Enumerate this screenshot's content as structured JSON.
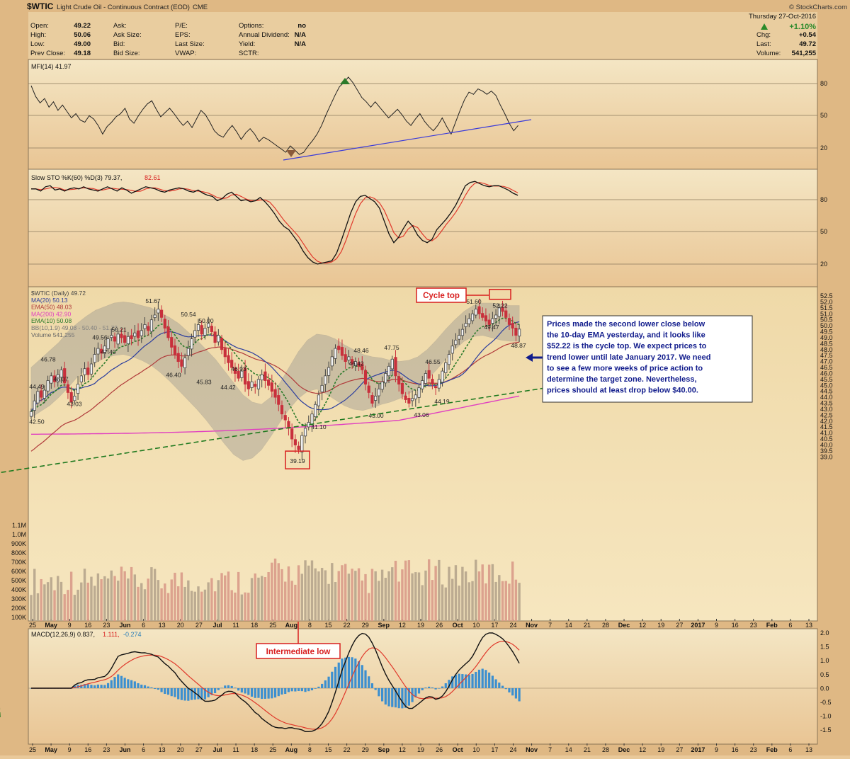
{
  "header": {
    "symbol": "$WTIC",
    "name": "Light Crude Oil - Continuous Contract (EOD)",
    "exchange": "CME",
    "watermark": "© StockCharts.com",
    "date": "Thursday  27-Oct-2016",
    "change_pct": "+1.10%",
    "stats": [
      {
        "label": "Open:",
        "value": "49.22"
      },
      {
        "label": "High:",
        "value": "50.06"
      },
      {
        "label": "Low:",
        "value": "49.00"
      },
      {
        "label": "Prev Close:",
        "value": "49.18"
      }
    ],
    "col2": [
      "Ask:",
      "Ask Size:",
      "Bid:",
      "Bid Size:"
    ],
    "col3": [
      "P/E:",
      "EPS:",
      "Last Size:",
      "VWAP:"
    ],
    "col4": [
      {
        "label": "Options:",
        "value": "no"
      },
      {
        "label": "Annual Dividend:",
        "value": "N/A"
      },
      {
        "label": "Yield:",
        "value": "N/A"
      },
      {
        "label": "SCTR:",
        "value": ""
      }
    ],
    "right": [
      {
        "label": "Chg:",
        "value": "+0.54"
      },
      {
        "label": "Last:",
        "value": "49.72"
      },
      {
        "label": "Volume:",
        "value": "541,255"
      }
    ]
  },
  "chart_data": {
    "type": "candlestick",
    "colors": {
      "up": "#444444",
      "down": "#c8303c",
      "ma20": "#2c3e9e",
      "ema50": "#b03a3a",
      "ma200": "#e040c0",
      "ema10": "#2a7a2a",
      "band": "#8f8f8f",
      "trend": "#1f7a1f",
      "annot": "#d81e1e",
      "note_text": "#111c8c"
    },
    "mfi": {
      "label": "MFI(14) 41.97",
      "ticks": [
        "80",
        "50",
        "20"
      ]
    },
    "sto": {
      "label_k": "Slow STO %K(60) %D(3) 79.37,",
      "label_d": "82.61",
      "ticks": [
        "80",
        "50",
        "20"
      ]
    },
    "macd": {
      "label": "MACD(12,26,9) 0.837,",
      "label_sig": "1.111,",
      "label_hist": "-0.274",
      "ticks": [
        "2.0",
        "1.5",
        "1.0",
        "0.5",
        "0.0",
        "-0.5",
        "-1.0",
        "-1.5"
      ]
    },
    "legend": [
      "$WTIC (Daily) 49.72",
      "MA(20) 50.13",
      "EMA(50) 48.03",
      "MA(200) 42.90",
      "EMA(10) 50.08",
      "BB(10,1.9) 49.08 - 50.40 - 51.72",
      "Volume 541,255"
    ],
    "price_ticks": [
      "52.5",
      "52.0",
      "51.5",
      "51.0",
      "50.5",
      "50.0",
      "49.5",
      "49.0",
      "48.5",
      "48.0",
      "47.5",
      "47.0",
      "46.5",
      "46.0",
      "45.5",
      "45.0",
      "44.5",
      "44.0",
      "43.5",
      "43.0",
      "42.5",
      "42.0",
      "41.5",
      "41.0",
      "40.5",
      "40.0",
      "39.5",
      "39.0"
    ],
    "volume_ticks": [
      "1.1M",
      "1.0M",
      "900K",
      "800K",
      "700K",
      "600K",
      "500K",
      "400K",
      "300K",
      "200K",
      "100K"
    ],
    "x_labels": [
      "25",
      "May",
      "9",
      "16",
      "23",
      "Jun",
      "6",
      "13",
      "20",
      "27",
      "Jul",
      "11",
      "18",
      "25",
      "Aug",
      "8",
      "15",
      "22",
      "29",
      "Sep",
      "12",
      "19",
      "26",
      "Oct",
      "10",
      "17",
      "24",
      "Nov",
      "7",
      "14",
      "21",
      "28",
      "Dec",
      "12",
      "19",
      "27",
      "2017",
      "9",
      "16",
      "23",
      "Feb",
      "6",
      "13"
    ],
    "price_labels": [
      {
        "text": "44.49",
        "v": 44.49
      },
      {
        "text": "42.50",
        "v": 42.5
      },
      {
        "text": "46.78",
        "v": 46.78
      },
      {
        "text": "46.07",
        "v": 46.07
      },
      {
        "text": "43.03",
        "v": 43.03
      },
      {
        "text": "49.56",
        "v": 49.56
      },
      {
        "text": "47.40",
        "v": 47.4
      },
      {
        "text": "50.21",
        "v": 50.21
      },
      {
        "text": "51.67",
        "v": 51.67
      },
      {
        "text": "46.40",
        "v": 46.4
      },
      {
        "text": "50.54",
        "v": 50.54
      },
      {
        "text": "45.83",
        "v": 45.83
      },
      {
        "text": "50.00",
        "v": 50.0
      },
      {
        "text": "46.93",
        "v": 46.93
      },
      {
        "text": "44.42",
        "v": 44.42
      },
      {
        "text": "39.19",
        "v": 39.19
      },
      {
        "text": "41.10",
        "v": 41.1
      },
      {
        "text": "48.46",
        "v": 48.46
      },
      {
        "text": "46.42",
        "v": 46.42
      },
      {
        "text": "43.00",
        "v": 43.0
      },
      {
        "text": "47.75",
        "v": 47.75
      },
      {
        "text": "43.06",
        "v": 43.06
      },
      {
        "text": "46.55",
        "v": 46.55
      },
      {
        "text": "44.19",
        "v": 44.19
      },
      {
        "text": "51.60",
        "v": 51.6
      },
      {
        "text": "52.22",
        "v": 52.22
      },
      {
        "text": "49.47",
        "v": 49.47
      },
      {
        "text": "48.87",
        "v": 48.87
      }
    ],
    "annotations": {
      "cycle_top": "Cycle top",
      "intermediate_low": "Intermediate low",
      "note": [
        "Prices made the second lower close below",
        "the 10-day EMA yesterday, and it looks like",
        "$52.22 is the cycle top. We expect prices to",
        "trend lower until late January 2017. We need",
        "to see a few more weeks of price action to",
        "determine the target zone. Nevertheless,",
        "prices should at least drop below $40.00."
      ]
    },
    "closes": [
      42.8,
      43.7,
      44.5,
      44.0,
      44.6,
      45.4,
      45.8,
      45.3,
      45.9,
      46.3,
      45.2,
      44.4,
      43.6,
      44.1,
      45.1,
      45.8,
      46.4,
      45.9,
      46.8,
      47.6,
      48.1,
      47.7,
      48.3,
      48.9,
      49.2,
      48.7,
      49.3,
      49.0,
      48.6,
      49.1,
      48.9,
      49.4,
      49.0,
      49.6,
      50.1,
      49.6,
      50.5,
      50.9,
      51.4,
      50.7,
      49.8,
      49.0,
      48.2,
      47.6,
      47.0,
      46.6,
      47.3,
      48.1,
      48.9,
      49.6,
      50.1,
      49.3,
      49.8,
      50.2,
      49.5,
      48.6,
      49.2,
      48.0,
      47.4,
      46.9,
      46.5,
      46.0,
      45.6,
      46.2,
      45.1,
      44.7,
      45.3,
      44.9,
      45.5,
      45.9,
      45.4,
      45.0,
      44.5,
      44.0,
      43.4,
      42.6,
      42.1,
      41.4,
      40.5,
      40.0,
      39.6,
      40.8,
      41.4,
      41.9,
      42.6,
      43.4,
      44.2,
      45.0,
      45.8,
      46.5,
      47.4,
      48.1,
      48.0,
      47.5,
      47.0,
      47.4,
      46.8,
      47.0,
      46.6,
      46.3,
      45.1,
      44.4,
      43.5,
      44.1,
      44.7,
      45.3,
      46.0,
      46.6,
      47.2,
      45.8,
      45.1,
      44.3,
      43.8,
      43.5,
      43.9,
      44.2,
      44.8,
      45.4,
      46.0,
      45.6,
      45.1,
      44.8,
      45.5,
      46.2,
      46.9,
      47.6,
      48.3,
      48.8,
      49.2,
      49.7,
      50.2,
      50.6,
      51.0,
      51.4,
      51.0,
      50.7,
      50.4,
      50.1,
      50.6,
      50.9,
      51.5,
      51.2,
      50.7,
      50.1,
      49.8,
      49.2,
      49.72
    ],
    "band_upper": [
      46.5,
      47.2,
      47.9,
      48.6,
      49.5,
      50.2,
      50.8,
      51.3,
      51.6,
      51.9,
      52.0,
      51.9,
      51.7,
      51.5,
      51.1,
      50.7,
      50.2,
      49.5,
      48.8,
      48.0,
      47.2,
      46.2,
      45.2,
      44.2,
      43.6,
      43.4,
      44.0,
      45.2,
      46.5,
      47.8,
      48.8,
      49.3,
      49.2,
      48.9,
      48.4,
      48.0,
      47.6,
      47.4,
      47.3,
      47.1,
      47.0,
      47.1,
      47.4,
      48.0,
      48.8,
      49.7,
      50.5,
      51.2,
      51.7,
      51.9,
      51.9,
      51.8,
      51.7,
      51.7
    ],
    "band_lower": [
      42.3,
      42.8,
      43.3,
      44.0,
      44.8,
      45.7,
      46.4,
      46.9,
      47.3,
      47.5,
      47.6,
      47.4,
      47.1,
      46.7,
      46.1,
      45.4,
      44.6,
      43.8,
      43.0,
      42.1,
      41.1,
      40.1,
      39.2,
      38.7,
      38.9,
      39.6,
      40.7,
      41.9,
      43.0,
      43.9,
      44.5,
      44.7,
      44.3,
      43.8,
      43.3,
      43.0,
      42.9,
      43.1,
      43.4,
      43.6,
      43.9,
      44.3,
      44.8,
      45.5,
      46.3,
      47.2,
      48.0,
      48.7,
      49.1,
      49.2,
      49.0,
      48.8,
      48.7,
      48.7
    ],
    "trendline": {
      "from": {
        "date": "2016-04-06",
        "price": 37.5
      },
      "to": {
        "date": "2016-11-30",
        "price": 44.9
      }
    }
  }
}
